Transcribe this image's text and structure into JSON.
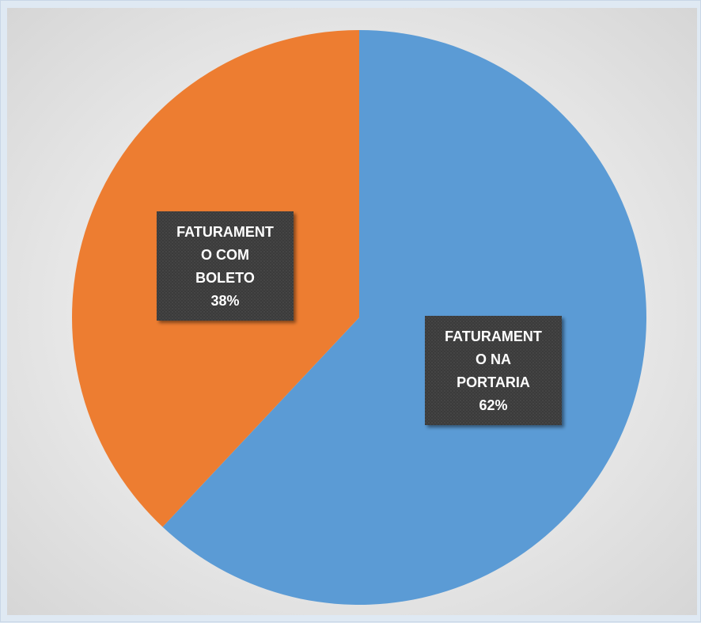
{
  "chart_data": {
    "type": "pie",
    "title": "",
    "start_angle_deg": 0,
    "direction": "clockwise",
    "slices": [
      {
        "label": "FATURAMENTO NA PORTARIA",
        "label_lines": [
          "FATURAMENT",
          "O NA",
          "PORTARIA",
          "62%"
        ],
        "value": 62,
        "color": "#5b9bd5"
      },
      {
        "label": "FATURAMENTO COM BOLETO",
        "label_lines": [
          "FATURAMENT",
          "O COM",
          "BOLETO",
          "38%"
        ],
        "value": 38,
        "color": "#ed7d31"
      }
    ],
    "data_label_background": "#404040",
    "legend": "none"
  }
}
